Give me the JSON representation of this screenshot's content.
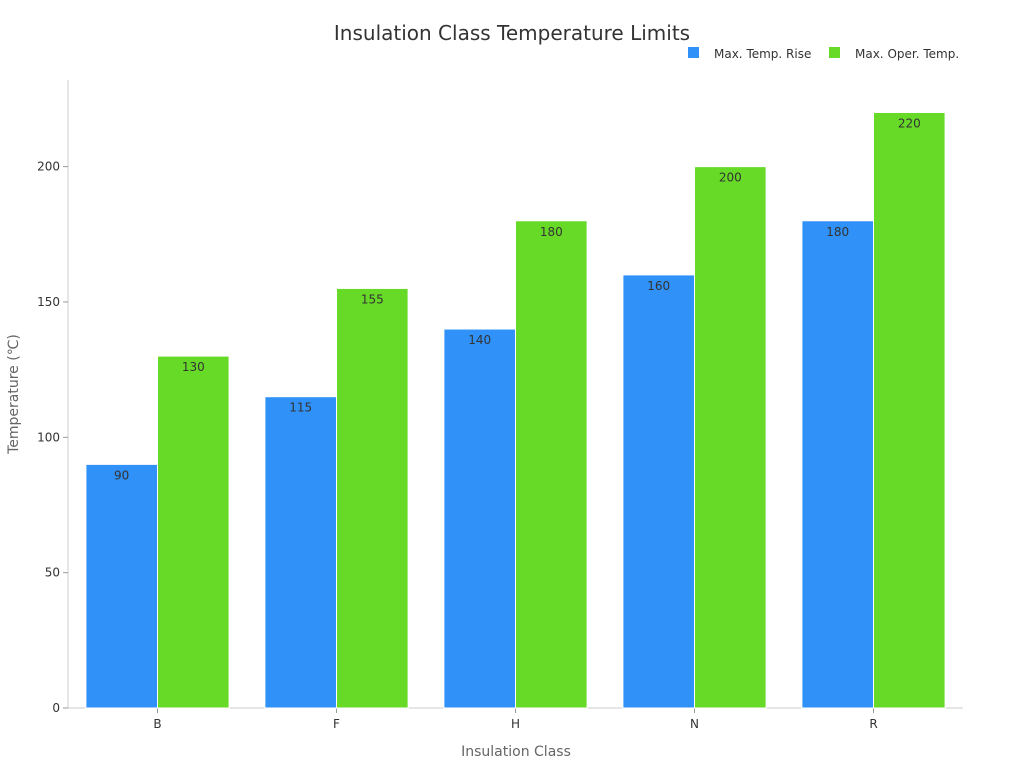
{
  "chart_data": {
    "type": "bar",
    "title": "Insulation Class Temperature Limits",
    "xlabel": "Insulation Class",
    "ylabel": "Temperature (℃)",
    "categories": [
      "B",
      "F",
      "H",
      "N",
      "R"
    ],
    "series": [
      {
        "name": "Max. Temp. Rise",
        "color": "#3091f8",
        "values": [
          90,
          115,
          140,
          160,
          180
        ]
      },
      {
        "name": "Max. Oper. Temp.",
        "color": "#67da28",
        "values": [
          130,
          155,
          180,
          200,
          220
        ]
      }
    ],
    "ylim": [
      0,
      232
    ],
    "yticks": [
      0,
      50,
      100,
      150,
      200
    ],
    "grid": false,
    "legend": "top-right"
  }
}
